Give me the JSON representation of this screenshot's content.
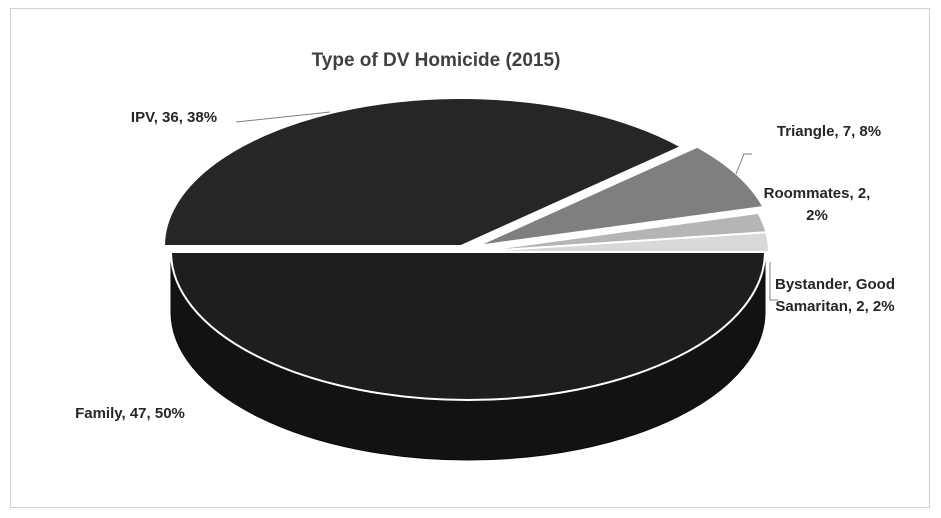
{
  "chart_data": {
    "type": "pie",
    "title": "Type of DV Homicide (2015)",
    "categories": [
      "Family",
      "IPV",
      "Triangle",
      "Roommates",
      "Bystander, Good Samaritan"
    ],
    "values": [
      47,
      36,
      7,
      2,
      2
    ],
    "percents": [
      50,
      38,
      8,
      2,
      2
    ],
    "labels": [
      "Family, 47, 50%",
      "IPV, 36, 38%",
      "Triangle, 7, 8%",
      "Roommates, 2, 2%",
      "Bystander, Good Samaritan, 2, 2%"
    ],
    "three_d": true,
    "exploded": [
      "IPV",
      "Triangle",
      "Roommates",
      "Bystander, Good Samaritan"
    ],
    "legend": "none",
    "colors": [
      "#1e1e1e",
      "#262626",
      "#7f7f7f",
      "#b5b5b5",
      "#d9d9d9"
    ]
  }
}
